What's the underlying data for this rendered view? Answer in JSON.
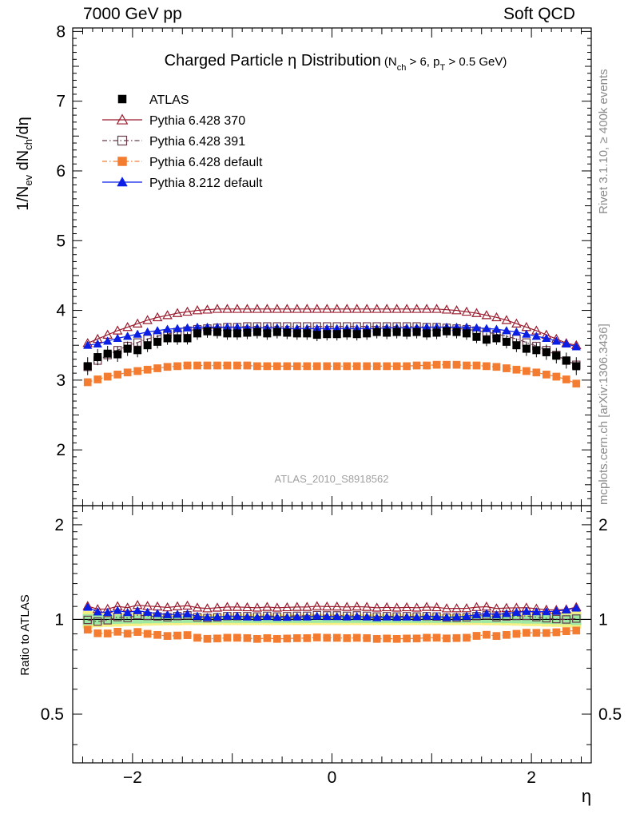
{
  "header": {
    "left": "7000 GeV pp",
    "right": "Soft QCD"
  },
  "side_labels": {
    "rivet": "Rivet 3.1.10, ≥ 400k events",
    "mcplots": "mcplots.cern.ch [arXiv:1306.3436]"
  },
  "chart_data": {
    "type": "scatter",
    "title": "Charged Particle η Distribution",
    "title_main": "Charged Particle",
    "title_eta": "η",
    "title_main2": "Distribution",
    "title_cut": {
      "open": "(N",
      "n_sub": "ch",
      "mid": " > 6, p",
      "p_sub": "T",
      "close": " > 0.5 GeV)"
    },
    "watermark": "ATLAS_2010_S8918562",
    "xlabel": "η",
    "ylabel": "1/N_ev dN_ch/dη",
    "ylabel_parts": {
      "a": "1/N",
      "a_sub": "ev",
      "b": " dN",
      "b_sub": "ch",
      "c": "/dη"
    },
    "ratio_ylabel": "Ratio to ATLAS",
    "xlim": [
      -2.6,
      2.6
    ],
    "ylim": [
      1.2,
      8.05
    ],
    "ratio_ylim": [
      0.35,
      2.3
    ],
    "x_ticks": [
      -2,
      0,
      2
    ],
    "x_tick_labels": [
      "−2",
      "0",
      "2"
    ],
    "y_ticks": [
      2,
      3,
      4,
      5,
      6,
      7,
      8
    ],
    "y_tick_labels": [
      "2",
      "3",
      "4",
      "5",
      "6",
      "7",
      "8"
    ],
    "ratio_ticks": [
      0.5,
      1,
      2
    ],
    "ratio_tick_labels": [
      "0.5",
      "1",
      "2"
    ],
    "eta_bins": [
      -2.45,
      -2.35,
      -2.25,
      -2.15,
      -2.05,
      -1.95,
      -1.85,
      -1.75,
      -1.65,
      -1.55,
      -1.45,
      -1.35,
      -1.25,
      -1.15,
      -1.05,
      -0.95,
      -0.85,
      -0.75,
      -0.65,
      -0.55,
      -0.45,
      -0.35,
      -0.25,
      -0.15,
      -0.05,
      0.05,
      0.15,
      0.25,
      0.35,
      0.45,
      0.55,
      0.65,
      0.75,
      0.85,
      0.95,
      1.05,
      1.15,
      1.25,
      1.35,
      1.45,
      1.55,
      1.65,
      1.75,
      1.85,
      1.95,
      2.05,
      2.15,
      2.25,
      2.35,
      2.45
    ],
    "data": {
      "name": "ATLAS",
      "values": [
        3.2,
        3.33,
        3.38,
        3.37,
        3.45,
        3.43,
        3.5,
        3.55,
        3.6,
        3.6,
        3.6,
        3.67,
        3.7,
        3.69,
        3.67,
        3.67,
        3.68,
        3.69,
        3.67,
        3.69,
        3.68,
        3.67,
        3.67,
        3.65,
        3.66,
        3.66,
        3.67,
        3.66,
        3.67,
        3.69,
        3.68,
        3.69,
        3.68,
        3.69,
        3.67,
        3.68,
        3.7,
        3.69,
        3.67,
        3.62,
        3.58,
        3.6,
        3.55,
        3.5,
        3.45,
        3.43,
        3.4,
        3.35,
        3.28,
        3.2
      ],
      "band_rel": [
        0.04,
        0.035,
        0.033,
        0.032,
        0.03,
        0.03,
        0.028,
        0.027,
        0.026,
        0.026,
        0.025,
        0.025,
        0.025,
        0.025,
        0.025,
        0.025,
        0.025,
        0.025,
        0.025,
        0.025,
        0.025,
        0.025,
        0.025,
        0.025,
        0.025,
        0.025,
        0.025,
        0.025,
        0.025,
        0.025,
        0.025,
        0.025,
        0.025,
        0.025,
        0.025,
        0.025,
        0.025,
        0.025,
        0.025,
        0.025,
        0.026,
        0.026,
        0.027,
        0.028,
        0.03,
        0.03,
        0.032,
        0.033,
        0.035,
        0.04
      ],
      "color": "#000000"
    },
    "series": [
      {
        "name": "Pythia 6.428 370",
        "marker": "triangle-open",
        "color": "#9a1b2d",
        "line": "solid",
        "values": [
          3.53,
          3.59,
          3.65,
          3.71,
          3.76,
          3.81,
          3.86,
          3.9,
          3.93,
          3.96,
          3.98,
          4.0,
          4.01,
          4.02,
          4.02,
          4.02,
          4.02,
          4.02,
          4.02,
          4.02,
          4.02,
          4.02,
          4.02,
          4.02,
          4.02,
          4.02,
          4.02,
          4.02,
          4.02,
          4.02,
          4.02,
          4.02,
          4.02,
          4.02,
          4.02,
          4.02,
          4.01,
          4.0,
          3.98,
          3.96,
          3.93,
          3.9,
          3.86,
          3.81,
          3.76,
          3.71,
          3.65,
          3.59,
          3.53,
          3.5
        ]
      },
      {
        "name": "Pythia 6.428 391",
        "marker": "square-open",
        "color": "#6b3a4a",
        "line": "dashdot",
        "values": [
          3.19,
          3.28,
          3.36,
          3.43,
          3.49,
          3.54,
          3.59,
          3.63,
          3.66,
          3.69,
          3.71,
          3.73,
          3.74,
          3.75,
          3.76,
          3.76,
          3.77,
          3.77,
          3.77,
          3.77,
          3.77,
          3.77,
          3.77,
          3.77,
          3.77,
          3.77,
          3.77,
          3.77,
          3.77,
          3.77,
          3.77,
          3.77,
          3.77,
          3.77,
          3.76,
          3.76,
          3.75,
          3.74,
          3.73,
          3.71,
          3.69,
          3.66,
          3.63,
          3.59,
          3.54,
          3.49,
          3.43,
          3.36,
          3.28,
          3.22
        ]
      },
      {
        "name": "Pythia 6.428 default",
        "marker": "square-filled",
        "color": "#f47c31",
        "line": "dashdot",
        "values": [
          2.97,
          3.01,
          3.05,
          3.08,
          3.11,
          3.13,
          3.15,
          3.17,
          3.19,
          3.2,
          3.21,
          3.21,
          3.21,
          3.21,
          3.21,
          3.21,
          3.21,
          3.2,
          3.2,
          3.2,
          3.2,
          3.2,
          3.2,
          3.2,
          3.2,
          3.2,
          3.2,
          3.2,
          3.2,
          3.2,
          3.2,
          3.2,
          3.2,
          3.21,
          3.21,
          3.22,
          3.22,
          3.22,
          3.21,
          3.21,
          3.2,
          3.19,
          3.17,
          3.15,
          3.13,
          3.11,
          3.08,
          3.05,
          3.01,
          2.95
        ]
      },
      {
        "name": "Pythia 8.212 default",
        "marker": "triangle-filled",
        "color": "#0a1ee6",
        "line": "solid",
        "values": [
          3.5,
          3.52,
          3.56,
          3.6,
          3.63,
          3.66,
          3.69,
          3.71,
          3.73,
          3.74,
          3.75,
          3.76,
          3.76,
          3.76,
          3.76,
          3.76,
          3.75,
          3.75,
          3.75,
          3.75,
          3.74,
          3.74,
          3.74,
          3.74,
          3.74,
          3.74,
          3.74,
          3.74,
          3.74,
          3.74,
          3.75,
          3.75,
          3.75,
          3.75,
          3.76,
          3.76,
          3.76,
          3.76,
          3.76,
          3.75,
          3.74,
          3.73,
          3.71,
          3.69,
          3.66,
          3.63,
          3.6,
          3.56,
          3.52,
          3.48
        ]
      }
    ],
    "legend_position": "top-left",
    "grid": false
  }
}
